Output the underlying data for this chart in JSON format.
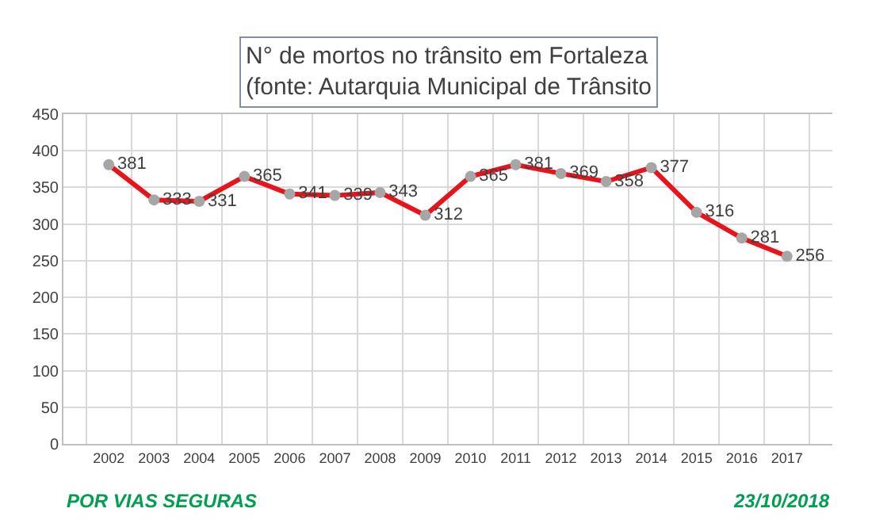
{
  "chart_data": {
    "type": "line",
    "title": "N° de mortos no trânsito em Fortaleza\n(fonte: Autarquia Municipal de Trânsito",
    "categories": [
      "2002",
      "2003",
      "2004",
      "2005",
      "2006",
      "2007",
      "2008",
      "2009",
      "2010",
      "2011",
      "2012",
      "2013",
      "2014",
      "2015",
      "2016",
      "2017"
    ],
    "series": [
      {
        "color": "#e8141c",
        "values": [
          381,
          333,
          331,
          365,
          341,
          339,
          343,
          312,
          365,
          381,
          369,
          358,
          377,
          316,
          281,
          256
        ]
      }
    ],
    "ylim": [
      0,
      450
    ],
    "yticks": [
      0,
      50,
      100,
      150,
      200,
      250,
      300,
      350,
      400,
      450
    ],
    "grid": true,
    "marker": "circle",
    "data_labels": true,
    "annotations": [
      "POR VIAS SEGURAS",
      "23/10/2018"
    ]
  }
}
